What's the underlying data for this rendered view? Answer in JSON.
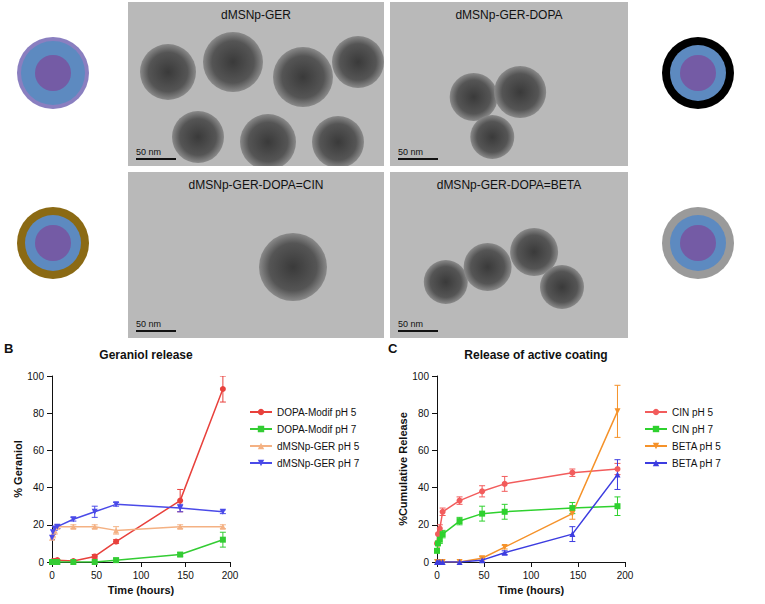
{
  "images": [
    {
      "label": "dMSNp-GER",
      "scale_bar": "50 nm"
    },
    {
      "label": "dMSNp-GER-DOPA",
      "scale_bar": "50 nm"
    },
    {
      "label": "dMSNp-GER-DOPA=CIN",
      "scale_bar": "50 nm"
    },
    {
      "label": "dMSNp-GER-DOPA=BETA",
      "scale_bar": "50 nm"
    }
  ],
  "chart_data": [
    {
      "type": "line",
      "panel": "B",
      "title": "Geraniol release",
      "x_label": "Time (hours)",
      "y_label": "% Geraniol",
      "x": [
        0,
        1,
        3,
        6,
        24,
        48,
        72,
        144,
        192
      ],
      "xlim": [
        0,
        200
      ],
      "xticks": [
        0,
        50,
        100,
        150,
        200
      ],
      "ylim": [
        0,
        100
      ],
      "yticks": [
        0,
        20,
        40,
        60,
        80,
        100
      ],
      "grid": false,
      "legend": "right",
      "series": [
        {
          "name": "DOPA-Modif pH 5",
          "color": "#e8413c",
          "marker": "circle",
          "values": [
            0,
            0.5,
            0.5,
            1,
            0.5,
            3,
            11,
            33,
            93
          ],
          "errors": [
            null,
            null,
            null,
            null,
            null,
            1,
            1,
            6,
            7
          ]
        },
        {
          "name": "DOPA-Modif pH 7",
          "color": "#33cc33",
          "marker": "square",
          "values": [
            0,
            0,
            0,
            0,
            0,
            0,
            1,
            4,
            12
          ],
          "errors": [
            null,
            null,
            null,
            null,
            null,
            null,
            1,
            1,
            4
          ]
        },
        {
          "name": "dMSNp-GER pH 5",
          "color": "#f4b183",
          "marker": "triangle",
          "values": [
            13,
            15,
            17,
            19,
            19,
            19,
            17,
            19,
            19
          ],
          "errors": [
            1,
            2,
            2,
            1,
            1,
            1,
            2,
            1,
            1
          ]
        },
        {
          "name": "dMSNp-GER pH 7",
          "color": "#4a4ae8",
          "marker": "triangle_down",
          "values": [
            13,
            16,
            18,
            19,
            23,
            27,
            31,
            29,
            27
          ],
          "errors": [
            1,
            1,
            1,
            1,
            1,
            3,
            1,
            2,
            1
          ]
        }
      ]
    },
    {
      "type": "line",
      "panel": "C",
      "title": "Release of active coating",
      "x_label": "Time (hours)",
      "y_label": "%Cumulative Release",
      "x": [
        0,
        1,
        3,
        6,
        24,
        48,
        72,
        144,
        192
      ],
      "xlim": [
        0,
        200
      ],
      "xticks": [
        0,
        50,
        100,
        150,
        200
      ],
      "ylim": [
        0,
        100
      ],
      "yticks": [
        0,
        20,
        40,
        60,
        80,
        100
      ],
      "grid": false,
      "legend": "right",
      "series": [
        {
          "name": "CIN pH 5",
          "color": "#f25c5c",
          "marker": "circle",
          "values": [
            10,
            15,
            18,
            27,
            33,
            38,
            42,
            48,
            50
          ],
          "errors": [
            2,
            2,
            2,
            2,
            2,
            3,
            4,
            2,
            3
          ]
        },
        {
          "name": "CIN pH 7",
          "color": "#2ed12e",
          "marker": "square",
          "values": [
            6,
            10,
            12,
            15,
            22,
            26,
            27,
            29,
            30
          ],
          "errors": [
            1,
            1,
            2,
            2,
            2,
            4,
            4,
            3,
            5
          ]
        },
        {
          "name": "BETA pH 5",
          "color": "#f5922a",
          "marker": "triangle_down",
          "values": [
            0,
            0,
            0,
            0,
            0,
            2,
            8,
            26,
            81
          ],
          "errors": [
            null,
            null,
            null,
            null,
            null,
            1,
            1,
            3,
            14
          ]
        },
        {
          "name": "BETA pH 7",
          "color": "#3c3ce0",
          "marker": "triangle",
          "values": [
            0,
            0,
            0,
            0,
            0,
            1,
            5,
            15,
            47
          ],
          "errors": [
            null,
            null,
            null,
            null,
            null,
            1,
            1,
            4,
            8
          ]
        }
      ]
    }
  ]
}
